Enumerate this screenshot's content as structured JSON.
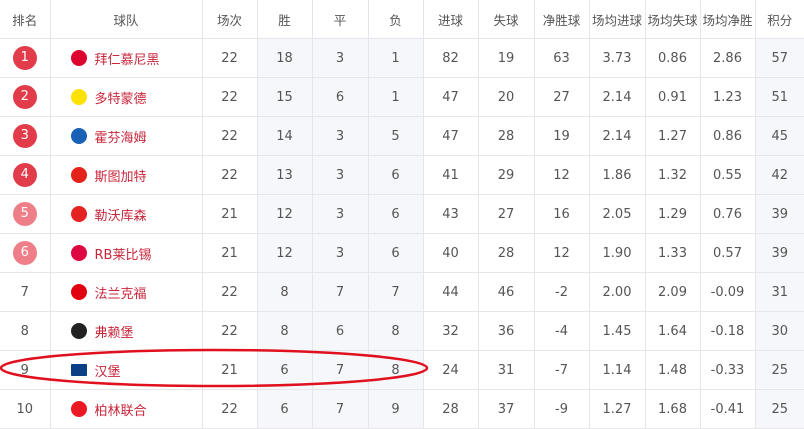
{
  "headers": [
    "排名",
    "球队",
    "场次",
    "胜",
    "平",
    "负",
    "进球",
    "失球",
    "净胜球",
    "场均进球",
    "场均失球",
    "场均净胜",
    "积分"
  ],
  "colors": {
    "badge_top": "#e23c4b",
    "badge_mid": "#ee7f88",
    "team_text": "#c8263b",
    "highlight_ellipse": "#e0101e"
  },
  "rows": [
    {
      "rank": "1",
      "team": "拜仁慕尼黑",
      "crest": "bayern-crest-icon",
      "crest_color": "#dc052d",
      "p": "22",
      "w": "18",
      "d": "3",
      "l": "1",
      "gf": "82",
      "ga": "19",
      "gd": "63",
      "avg_gf": "3.73",
      "avg_ga": "0.86",
      "avg_gd": "2.86",
      "pts": "57",
      "badge": "top"
    },
    {
      "rank": "2",
      "team": "多特蒙德",
      "crest": "dortmund-crest-icon",
      "crest_color": "#fde100",
      "p": "22",
      "w": "15",
      "d": "6",
      "l": "1",
      "gf": "47",
      "ga": "20",
      "gd": "27",
      "avg_gf": "2.14",
      "avg_ga": "0.91",
      "avg_gd": "1.23",
      "pts": "51",
      "badge": "top"
    },
    {
      "rank": "3",
      "team": "霍芬海姆",
      "crest": "hoffenheim-crest-icon",
      "crest_color": "#1961b5",
      "p": "22",
      "w": "14",
      "d": "3",
      "l": "5",
      "gf": "47",
      "ga": "28",
      "gd": "19",
      "avg_gf": "2.14",
      "avg_ga": "1.27",
      "avg_gd": "0.86",
      "pts": "45",
      "badge": "top"
    },
    {
      "rank": "4",
      "team": "斯图加特",
      "crest": "stuttgart-crest-icon",
      "crest_color": "#e32219",
      "p": "22",
      "w": "13",
      "d": "3",
      "l": "6",
      "gf": "41",
      "ga": "29",
      "gd": "12",
      "avg_gf": "1.86",
      "avg_ga": "1.32",
      "avg_gd": "0.55",
      "pts": "42",
      "badge": "top"
    },
    {
      "rank": "5",
      "team": "勒沃库森",
      "crest": "leverkusen-crest-icon",
      "crest_color": "#e32221",
      "p": "21",
      "w": "12",
      "d": "3",
      "l": "6",
      "gf": "43",
      "ga": "27",
      "gd": "16",
      "avg_gf": "2.05",
      "avg_ga": "1.29",
      "avg_gd": "0.76",
      "pts": "39",
      "badge": "mid"
    },
    {
      "rank": "6",
      "team": "RB莱比锡",
      "crest": "leipzig-crest-icon",
      "crest_color": "#dd0741",
      "p": "21",
      "w": "12",
      "d": "3",
      "l": "6",
      "gf": "40",
      "ga": "28",
      "gd": "12",
      "avg_gf": "1.90",
      "avg_ga": "1.33",
      "avg_gd": "0.57",
      "pts": "39",
      "badge": "mid"
    },
    {
      "rank": "7",
      "team": "法兰克福",
      "crest": "frankfurt-crest-icon",
      "crest_color": "#e1000f",
      "p": "22",
      "w": "8",
      "d": "7",
      "l": "7",
      "gf": "44",
      "ga": "46",
      "gd": "-2",
      "avg_gf": "2.00",
      "avg_ga": "2.09",
      "avg_gd": "-0.09",
      "pts": "31",
      "badge": "none"
    },
    {
      "rank": "8",
      "team": "弗赖堡",
      "crest": "freiburg-crest-icon",
      "crest_color": "#222222",
      "p": "22",
      "w": "8",
      "d": "6",
      "l": "8",
      "gf": "32",
      "ga": "36",
      "gd": "-4",
      "avg_gf": "1.45",
      "avg_ga": "1.64",
      "avg_gd": "-0.18",
      "pts": "30",
      "badge": "none"
    },
    {
      "rank": "9",
      "team": "汉堡",
      "crest": "hamburg-crest-icon",
      "crest_color": "#0a3f86",
      "p": "21",
      "w": "6",
      "d": "7",
      "l": "8",
      "gf": "24",
      "ga": "31",
      "gd": "-7",
      "avg_gf": "1.14",
      "avg_ga": "1.48",
      "avg_gd": "-0.33",
      "pts": "25",
      "badge": "none",
      "highlighted": true
    },
    {
      "rank": "10",
      "team": "柏林联合",
      "crest": "union-berlin-crest-icon",
      "crest_color": "#eb1923",
      "p": "22",
      "w": "6",
      "d": "7",
      "l": "9",
      "gf": "28",
      "ga": "37",
      "gd": "-9",
      "avg_gf": "1.27",
      "avg_ga": "1.68",
      "avg_gd": "-0.41",
      "pts": "25",
      "badge": "none"
    }
  ]
}
